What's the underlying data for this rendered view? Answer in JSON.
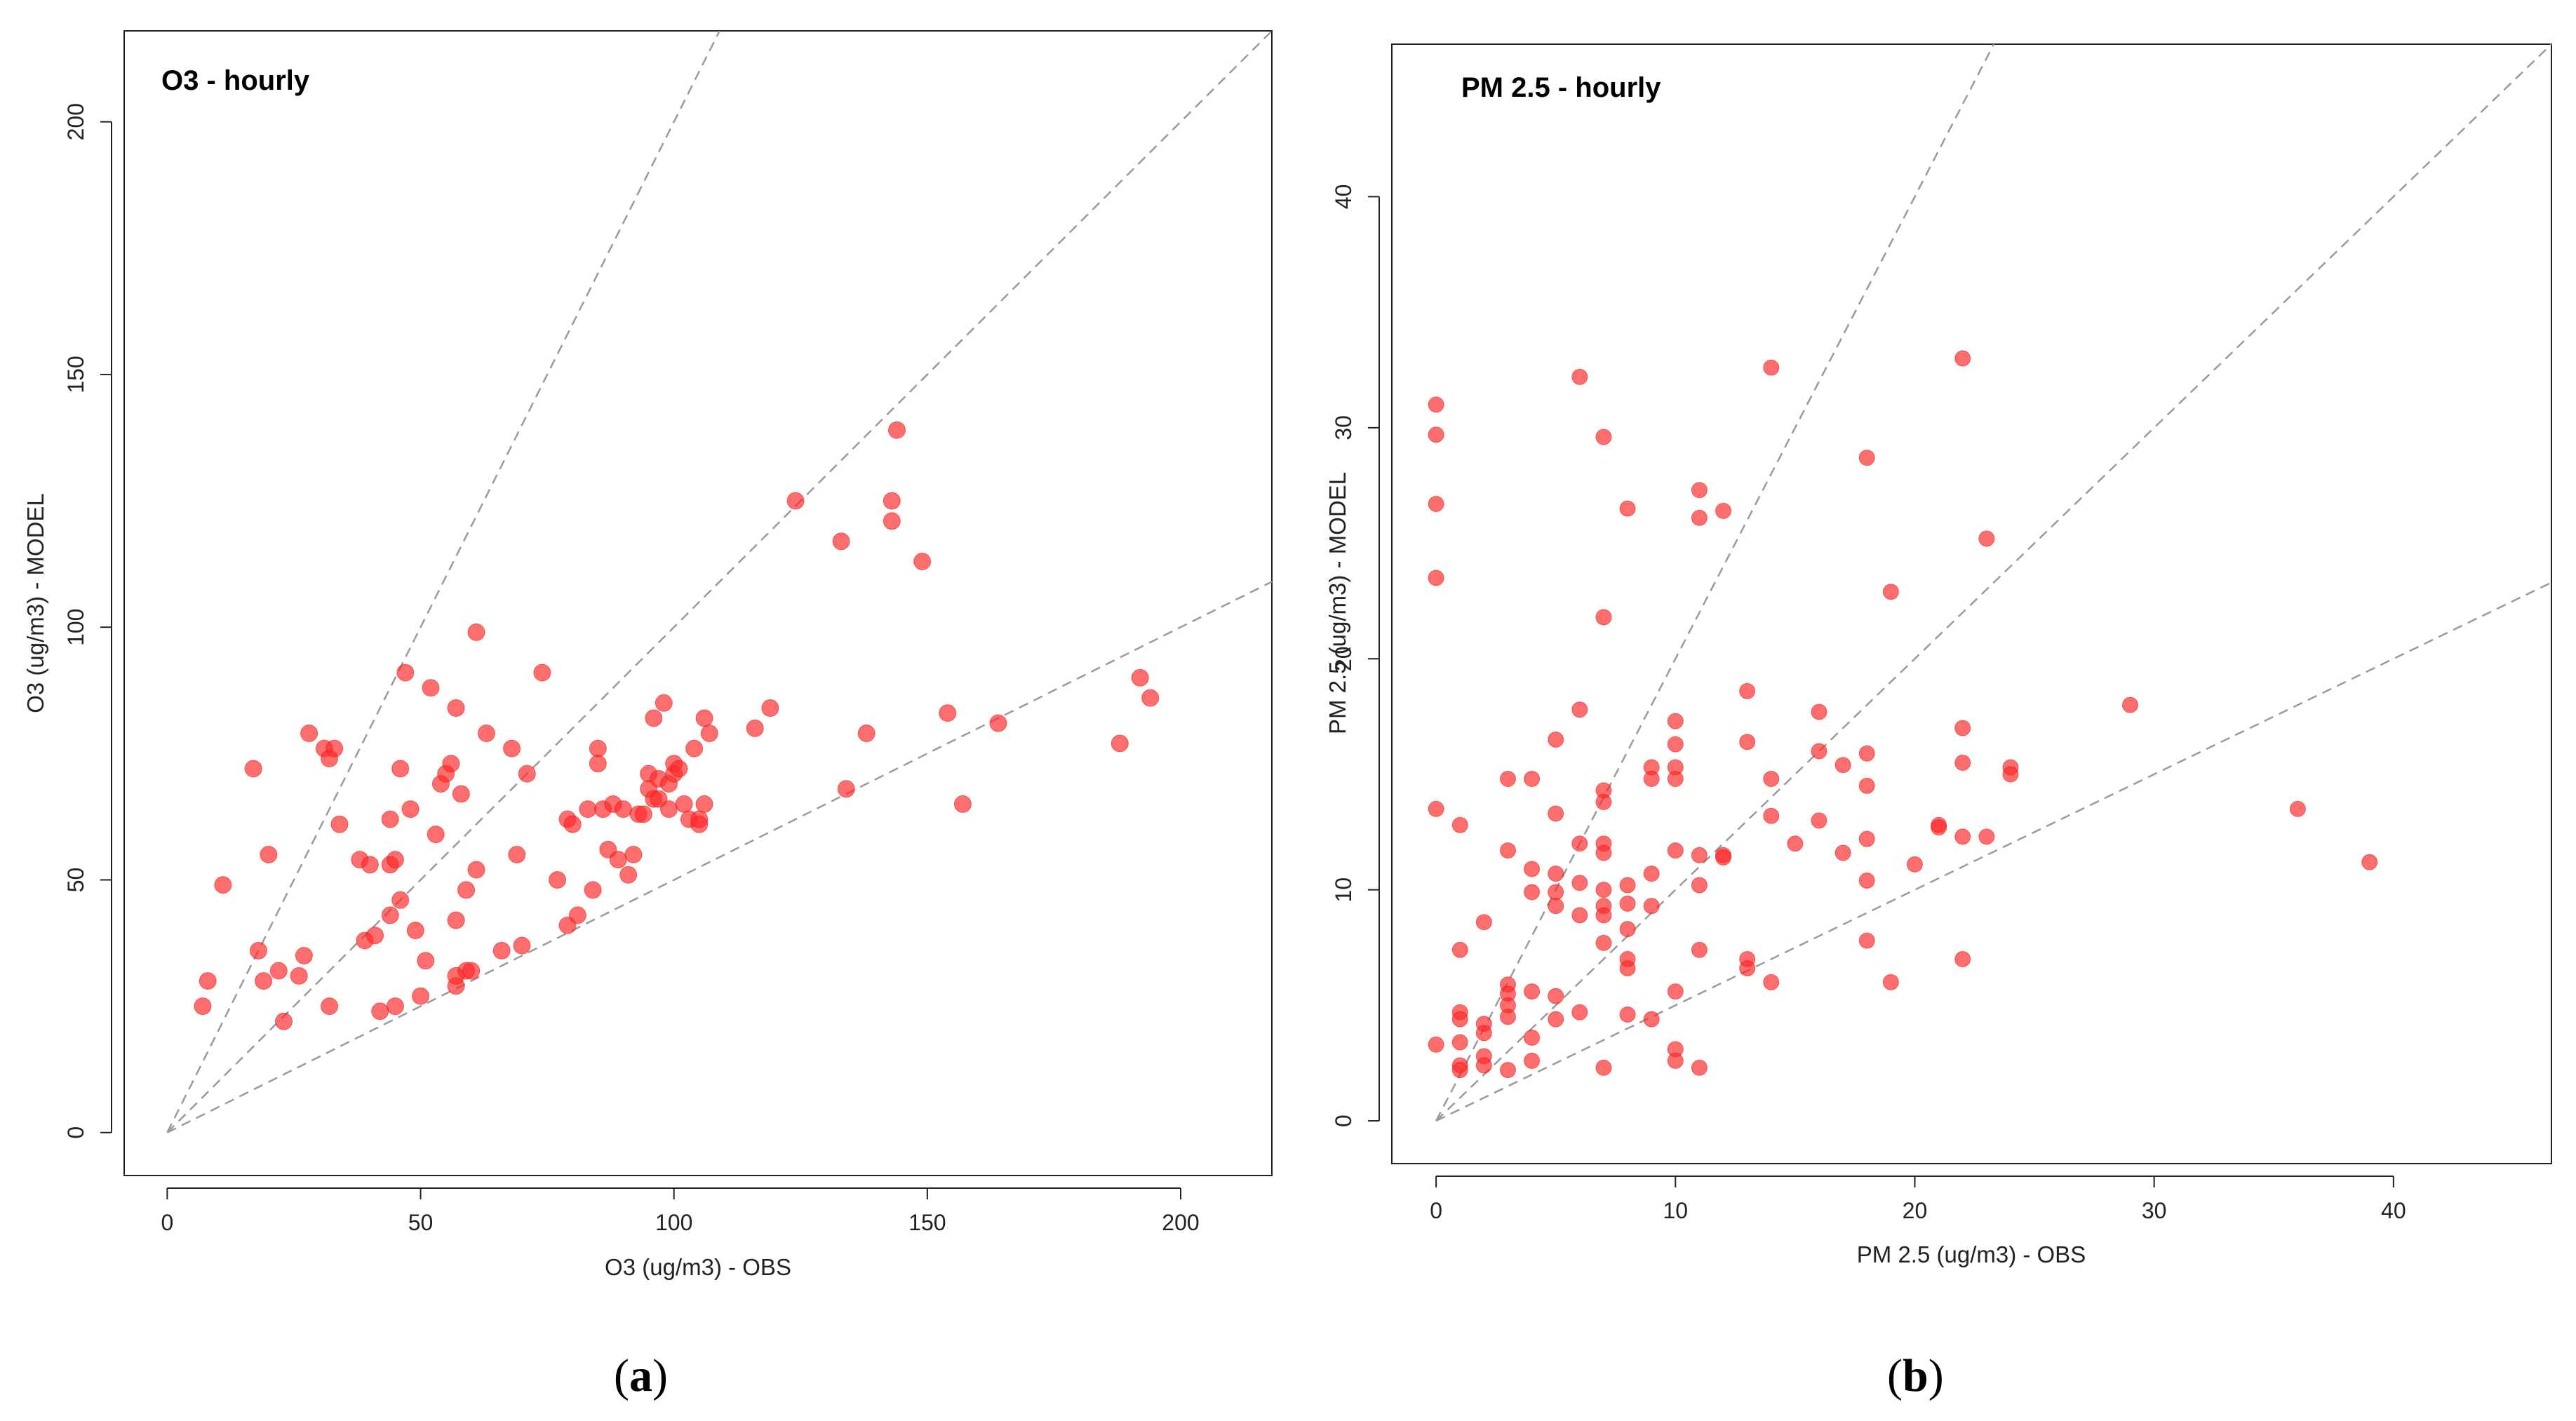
{
  "chart_data": [
    {
      "type": "scatter",
      "title": "O3 - hourly",
      "xlabel": "O3 (ug/m3) - OBS",
      "ylabel": "O3 (ug/m3) - MODEL",
      "caption": "a",
      "xlim": [
        -8.5,
        218
      ],
      "ylim": [
        -8.5,
        218
      ],
      "xticks": [
        0,
        50,
        100,
        150,
        200
      ],
      "yticks": [
        0,
        50,
        100,
        150,
        200
      ],
      "reference_slopes": [
        2,
        1,
        0.5
      ],
      "marker_color": "#ff2a2a",
      "guide_color": "#9a9a9a",
      "points": [
        [
          7,
          25
        ],
        [
          8,
          30
        ],
        [
          11,
          49
        ],
        [
          17,
          72
        ],
        [
          18,
          36
        ],
        [
          19,
          30
        ],
        [
          20,
          55
        ],
        [
          22,
          32
        ],
        [
          23,
          22
        ],
        [
          26,
          31
        ],
        [
          27,
          35
        ],
        [
          28,
          79
        ],
        [
          31,
          76
        ],
        [
          32,
          74
        ],
        [
          33,
          76
        ],
        [
          34,
          61
        ],
        [
          32,
          25
        ],
        [
          38,
          54
        ],
        [
          39,
          38
        ],
        [
          40,
          53
        ],
        [
          41,
          39
        ],
        [
          42,
          24
        ],
        [
          44,
          43
        ],
        [
          44,
          53
        ],
        [
          44,
          62
        ],
        [
          45,
          54
        ],
        [
          45,
          25
        ],
        [
          46,
          72
        ],
        [
          46,
          46
        ],
        [
          47,
          91
        ],
        [
          48,
          64
        ],
        [
          49,
          40
        ],
        [
          50,
          27
        ],
        [
          51,
          34
        ],
        [
          52,
          88
        ],
        [
          53,
          59
        ],
        [
          54,
          69
        ],
        [
          55,
          71
        ],
        [
          56,
          73
        ],
        [
          57,
          84
        ],
        [
          57,
          42
        ],
        [
          57,
          29
        ],
        [
          57,
          31
        ],
        [
          58,
          67
        ],
        [
          59,
          48
        ],
        [
          59,
          32
        ],
        [
          60,
          32
        ],
        [
          61,
          99
        ],
        [
          61,
          52
        ],
        [
          63,
          79
        ],
        [
          66,
          36
        ],
        [
          68,
          76
        ],
        [
          69,
          55
        ],
        [
          70,
          37
        ],
        [
          71,
          71
        ],
        [
          74,
          91
        ],
        [
          77,
          50
        ],
        [
          79,
          62
        ],
        [
          79,
          41
        ],
        [
          80,
          61
        ],
        [
          81,
          43
        ],
        [
          83,
          64
        ],
        [
          84,
          48
        ],
        [
          85,
          76
        ],
        [
          85,
          73
        ],
        [
          86,
          64
        ],
        [
          87,
          56
        ],
        [
          88,
          65
        ],
        [
          89,
          54
        ],
        [
          90,
          64
        ],
        [
          91,
          51
        ],
        [
          92,
          55
        ],
        [
          93,
          63
        ],
        [
          94,
          63
        ],
        [
          95,
          71
        ],
        [
          95,
          68
        ],
        [
          96,
          66
        ],
        [
          96,
          82
        ],
        [
          97,
          70
        ],
        [
          97,
          66
        ],
        [
          98,
          85
        ],
        [
          99,
          64
        ],
        [
          99,
          69
        ],
        [
          100,
          71
        ],
        [
          100,
          73
        ],
        [
          101,
          72
        ],
        [
          102,
          65
        ],
        [
          103,
          62
        ],
        [
          104,
          76
        ],
        [
          105,
          61
        ],
        [
          105,
          62
        ],
        [
          106,
          65
        ],
        [
          106,
          82
        ],
        [
          107,
          79
        ],
        [
          116,
          80
        ],
        [
          119,
          84
        ],
        [
          124,
          125
        ],
        [
          133,
          117
        ],
        [
          134,
          68
        ],
        [
          138,
          79
        ],
        [
          143,
          125
        ],
        [
          143,
          121
        ],
        [
          144,
          139
        ],
        [
          149,
          113
        ],
        [
          154,
          83
        ],
        [
          157,
          65
        ],
        [
          164,
          81
        ],
        [
          188,
          77
        ],
        [
          192,
          90
        ],
        [
          194,
          86
        ]
      ]
    },
    {
      "type": "scatter",
      "title": "PM 2.5 - hourly",
      "xlabel": "PM 2.5 (ug/m3) - OBS",
      "ylabel": "PM 2.5 (ug/m3) - MODEL",
      "caption": "b",
      "xlim": [
        -1.85,
        46.6
      ],
      "ylim": [
        -1.85,
        46.6
      ],
      "xticks": [
        0,
        10,
        20,
        30,
        40
      ],
      "yticks": [
        0,
        10,
        20,
        30,
        40
      ],
      "reference_slopes": [
        2,
        1,
        0.5
      ],
      "marker_color": "#ff2a2a",
      "guide_color": "#9a9a9a",
      "points": [
        [
          0,
          31
        ],
        [
          0,
          29.7
        ],
        [
          0,
          26.7
        ],
        [
          0,
          23.5
        ],
        [
          0,
          13.5
        ],
        [
          0,
          3.3
        ],
        [
          1,
          12.8
        ],
        [
          1,
          7.4
        ],
        [
          1,
          4.7
        ],
        [
          1,
          4.4
        ],
        [
          1,
          3.4
        ],
        [
          1,
          2.4
        ],
        [
          1,
          2.2
        ],
        [
          2,
          8.6
        ],
        [
          2,
          4.2
        ],
        [
          2,
          3.8
        ],
        [
          2,
          2.8
        ],
        [
          2,
          2.4
        ],
        [
          3,
          14.8
        ],
        [
          3,
          11.7
        ],
        [
          3,
          5.9
        ],
        [
          3,
          5.5
        ],
        [
          3,
          5
        ],
        [
          3,
          4.5
        ],
        [
          3,
          2.2
        ],
        [
          4,
          14.8
        ],
        [
          4,
          10.9
        ],
        [
          4,
          9.9
        ],
        [
          4,
          5.6
        ],
        [
          4,
          3.6
        ],
        [
          4,
          2.6
        ],
        [
          5,
          16.5
        ],
        [
          5,
          13.3
        ],
        [
          5,
          10.7
        ],
        [
          5,
          9.9
        ],
        [
          5,
          9.3
        ],
        [
          5,
          5.4
        ],
        [
          5,
          4.4
        ],
        [
          6,
          32.2
        ],
        [
          6,
          17.8
        ],
        [
          6,
          12
        ],
        [
          6,
          10.3
        ],
        [
          6,
          8.9
        ],
        [
          6,
          4.7
        ],
        [
          7,
          29.6
        ],
        [
          7,
          21.8
        ],
        [
          7,
          14.3
        ],
        [
          7,
          13.8
        ],
        [
          7,
          12
        ],
        [
          7,
          11.6
        ],
        [
          7,
          10
        ],
        [
          7,
          9.3
        ],
        [
          7,
          8.9
        ],
        [
          7,
          7.7
        ],
        [
          7,
          2.3
        ],
        [
          8,
          26.5
        ],
        [
          8,
          10.2
        ],
        [
          8,
          9.4
        ],
        [
          8,
          8.3
        ],
        [
          8,
          7
        ],
        [
          8,
          6.6
        ],
        [
          8,
          4.6
        ],
        [
          9,
          15.3
        ],
        [
          9,
          14.8
        ],
        [
          9,
          10.7
        ],
        [
          9,
          9.3
        ],
        [
          9,
          4.4
        ],
        [
          10,
          17.3
        ],
        [
          10,
          16.3
        ],
        [
          10,
          15.3
        ],
        [
          10,
          14.8
        ],
        [
          10,
          11.7
        ],
        [
          10,
          5.6
        ],
        [
          10,
          3.1
        ],
        [
          10,
          2.6
        ],
        [
          11,
          27.3
        ],
        [
          11,
          26.1
        ],
        [
          11,
          11.5
        ],
        [
          11,
          10.2
        ],
        [
          11,
          7.4
        ],
        [
          11,
          2.3
        ],
        [
          12,
          26.4
        ],
        [
          12,
          11.5
        ],
        [
          12,
          11.4
        ],
        [
          13,
          18.6
        ],
        [
          13,
          16.4
        ],
        [
          13,
          7
        ],
        [
          13,
          6.6
        ],
        [
          14,
          32.6
        ],
        [
          14,
          14.8
        ],
        [
          14,
          13.2
        ],
        [
          14,
          6
        ],
        [
          15,
          12
        ],
        [
          16,
          17.7
        ],
        [
          16,
          16
        ],
        [
          16,
          13
        ],
        [
          17,
          15.4
        ],
        [
          17,
          11.6
        ],
        [
          18,
          28.7
        ],
        [
          18,
          15.9
        ],
        [
          18,
          14.5
        ],
        [
          18,
          12.2
        ],
        [
          18,
          10.4
        ],
        [
          18,
          7.8
        ],
        [
          19,
          22.9
        ],
        [
          19,
          6
        ],
        [
          20,
          11.1
        ],
        [
          21,
          12.8
        ],
        [
          21,
          12.7
        ],
        [
          22,
          33
        ],
        [
          22,
          17
        ],
        [
          22,
          15.5
        ],
        [
          22,
          12.3
        ],
        [
          22,
          7
        ],
        [
          23,
          25.2
        ],
        [
          23,
          12.3
        ],
        [
          24,
          15.3
        ],
        [
          24,
          15
        ],
        [
          29,
          18
        ],
        [
          36,
          13.5
        ],
        [
          39,
          11.2
        ]
      ]
    }
  ]
}
